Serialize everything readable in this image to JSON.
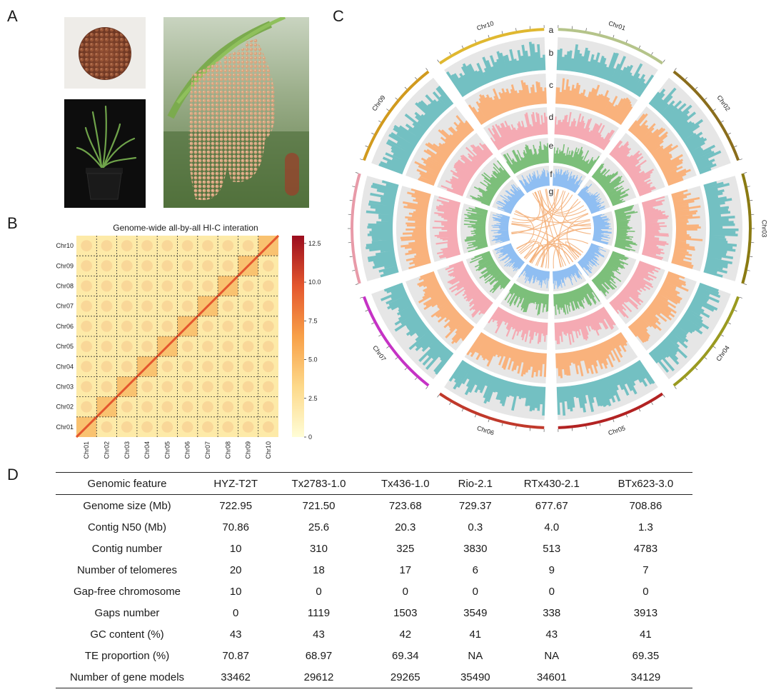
{
  "panels": {
    "a": "A",
    "b": "B",
    "c": "C",
    "d": "D"
  },
  "hic": {
    "title": "Genome-wide all-by-all HI-C interation",
    "chromosomes": [
      "Chr01",
      "Chr02",
      "Chr03",
      "Chr04",
      "Chr05",
      "Chr06",
      "Chr07",
      "Chr08",
      "Chr09",
      "Chr10"
    ],
    "colorbar_ticks": [
      "0",
      "2.5",
      "5.0",
      "7.5",
      "10.0",
      "12.5"
    ],
    "colorbar_values": [
      0,
      2.5,
      5.0,
      7.5,
      10.0,
      12.5
    ],
    "colorbar_max": 13
  },
  "circos": {
    "chromosomes": [
      "Chr01",
      "Chr02",
      "Chr03",
      "Chr04",
      "Chr05",
      "Chr06",
      "Chr07",
      "Chr08",
      "Chr09",
      "Chr10"
    ],
    "chrom_colors": [
      "#b5c48a",
      "#8a6d1c",
      "#8a7a12",
      "#9a9a20",
      "#b22222",
      "#c0392b",
      "#c533c5",
      "#e89aa8",
      "#d19a1e",
      "#e0b830"
    ],
    "track_labels": [
      "a",
      "b",
      "c",
      "d",
      "e",
      "f",
      "g"
    ],
    "track_colors": [
      "#73c0c2",
      "#f9b27c",
      "#f5aab3",
      "#7cbf7a",
      "#8fbef2",
      "#f4b07a"
    ]
  },
  "table": {
    "headers": [
      "Genomic feature",
      "HYZ-T2T",
      "Tx2783-1.0",
      "Tx436-1.0",
      "Rio-2.1",
      "RTx430-2.1",
      "BTx623-3.0"
    ],
    "rows": [
      [
        "Genome size (Mb)",
        "722.95",
        "721.50",
        "723.68",
        "729.37",
        "677.67",
        "708.86"
      ],
      [
        "Contig N50 (Mb)",
        "70.86",
        "25.6",
        "20.3",
        "0.3",
        "4.0",
        "1.3"
      ],
      [
        "Contig number",
        "10",
        "310",
        "325",
        "3830",
        "513",
        "4783"
      ],
      [
        "Number of telomeres",
        "20",
        "18",
        "17",
        "6",
        "9",
        "7"
      ],
      [
        "Gap-free chromosome",
        "10",
        "0",
        "0",
        "0",
        "0",
        "0"
      ],
      [
        "Gaps number",
        "0",
        "1119",
        "1503",
        "3549",
        "338",
        "3913"
      ],
      [
        "GC content (%)",
        "43",
        "43",
        "42",
        "41",
        "43",
        "41"
      ],
      [
        "TE proportion (%)",
        "70.87",
        "68.97",
        "69.34",
        "NA",
        "NA",
        "69.35"
      ],
      [
        "Number of gene models",
        "33462",
        "29612",
        "29265",
        "35490",
        "34601",
        "34129"
      ]
    ]
  }
}
